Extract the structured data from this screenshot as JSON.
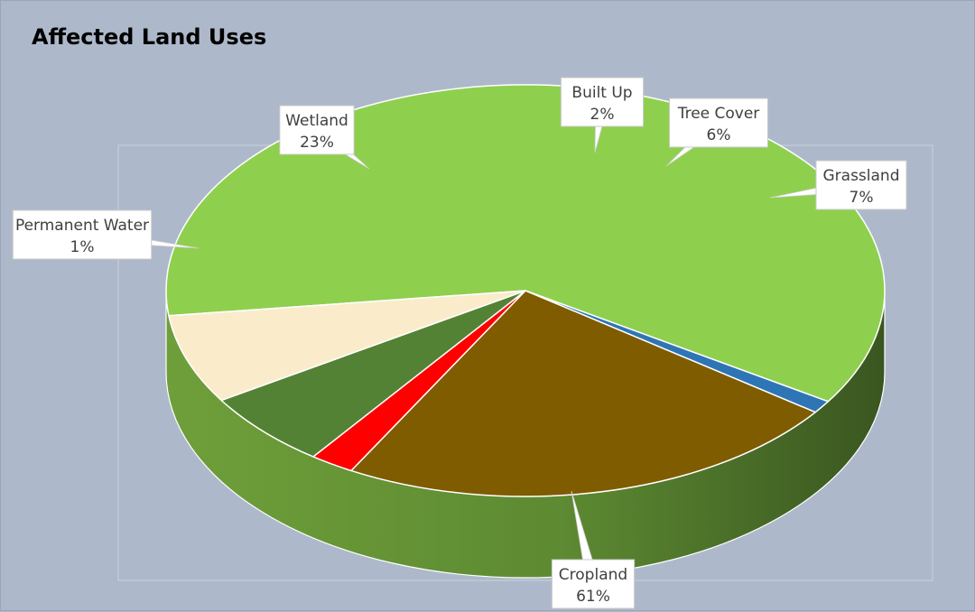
{
  "chart_data": {
    "type": "pie",
    "title": "Affected Land Uses",
    "three_d": true,
    "slices": [
      {
        "label": "Cropland",
        "percent_label": "61%",
        "value": 61,
        "color": "#8fcf4e"
      },
      {
        "label": "Permanent Water",
        "percent_label": "1%",
        "value": 1,
        "color": "#2e75b6"
      },
      {
        "label": "Wetland",
        "percent_label": "23%",
        "value": 23,
        "color": "#7f5c00"
      },
      {
        "label": "Built Up",
        "percent_label": "2%",
        "value": 2,
        "color": "#ff0000"
      },
      {
        "label": "Tree Cover",
        "percent_label": "6%",
        "value": 6,
        "color": "#548235"
      },
      {
        "label": "Grassland",
        "percent_label": "7%",
        "value": 7,
        "color": "#faeccb"
      }
    ]
  }
}
